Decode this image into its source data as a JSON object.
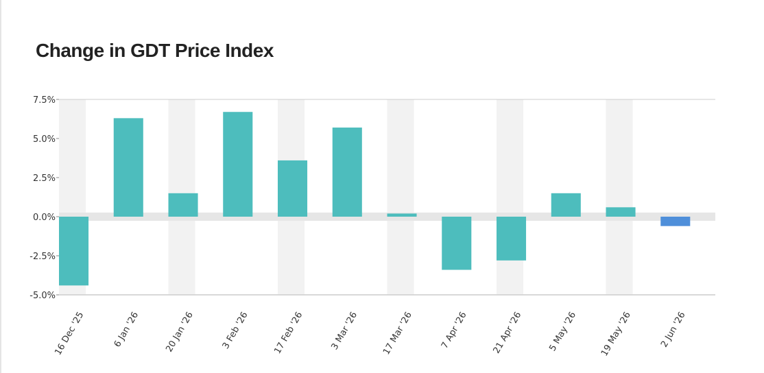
{
  "chart_data": {
    "type": "bar",
    "title": "Change in GDT Price Index",
    "xlabel": "",
    "ylabel": "",
    "categories": [
      "16 Dec '25",
      "6 Jan '26",
      "20 Jan '26",
      "3 Feb '26",
      "17 Feb '26",
      "3 Mar '26",
      "17 Mar '26",
      "7 Apr '26",
      "21 Apr '26",
      "5 May '26",
      "19 May '26",
      "2 Jun '26"
    ],
    "values": [
      -4.4,
      6.3,
      1.5,
      6.7,
      3.6,
      5.7,
      0.2,
      -3.4,
      -2.8,
      1.5,
      0.6,
      -0.6
    ],
    "ylim": [
      -5.0,
      7.5
    ],
    "yticks": [
      7.5,
      5.0,
      2.5,
      0.0,
      -2.5,
      -5.0
    ],
    "ytick_labels": [
      "7.5%",
      "5.0%",
      "2.5%",
      "0.0%",
      "-2.5%",
      "-5.0%"
    ],
    "grid": true,
    "legend": "none",
    "colors": {
      "bar": "#4dbdbd",
      "highlight_bar": "#4f8fda",
      "band": "#f2f2f2",
      "zero_band": "#e6e6e6",
      "axis": "#cccccc"
    },
    "highlight_index": 11
  }
}
